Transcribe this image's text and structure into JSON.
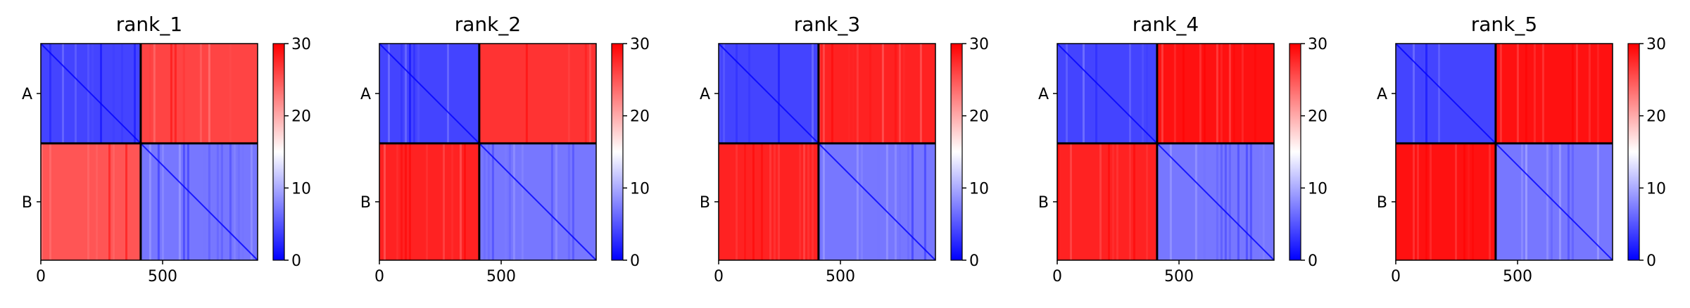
{
  "chart_data": {
    "type": "heatmap",
    "description_note": "",
    "colormap": {
      "low": "#0000ff",
      "mid": "#ffffff",
      "high": "#ff0000"
    },
    "color_range": [
      0,
      30
    ],
    "colorbar_ticks": [
      0,
      10,
      20,
      30
    ],
    "colorbar_tick_labels": [
      "0",
      "10",
      "20",
      "30"
    ],
    "x_ticks": [
      0,
      500
    ],
    "x_tick_labels": [
      "0",
      "500"
    ],
    "x_range": [
      0,
      890
    ],
    "segments": [
      {
        "label": "A",
        "start": 0,
        "end": 410
      },
      {
        "label": "B",
        "start": 410,
        "end": 890
      }
    ],
    "panels": [
      {
        "title": "rank_1",
        "mean_values": {
          "AA": 4,
          "AB": 26,
          "BA": 25,
          "BB": 7
        }
      },
      {
        "title": "rank_2",
        "mean_values": {
          "AA": 4,
          "AB": 27,
          "BA": 28,
          "BB": 7
        }
      },
      {
        "title": "rank_3",
        "mean_values": {
          "AA": 4,
          "AB": 28,
          "BA": 28,
          "BB": 7
        }
      },
      {
        "title": "rank_4",
        "mean_values": {
          "AA": 4,
          "AB": 29,
          "BA": 28,
          "BB": 7
        }
      },
      {
        "title": "rank_5",
        "mean_values": {
          "AA": 4,
          "AB": 29,
          "BA": 29,
          "BB": 7
        }
      }
    ]
  }
}
